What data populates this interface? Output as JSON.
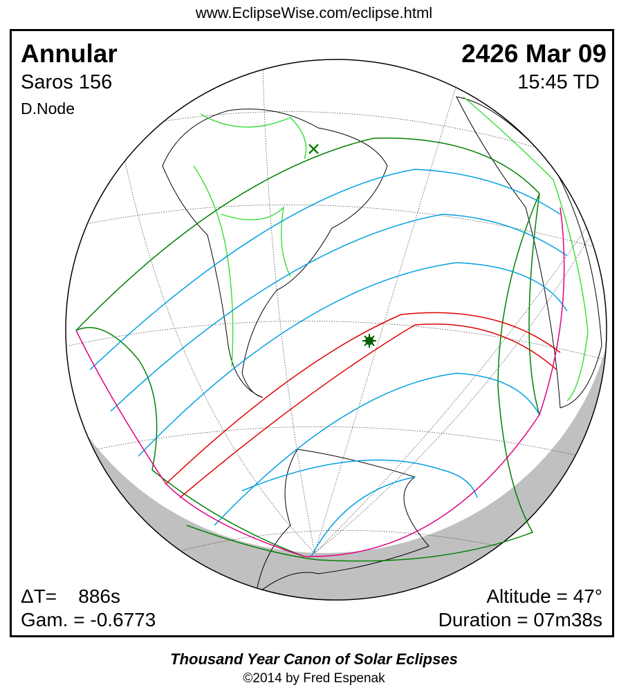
{
  "header": {
    "url": "www.EclipseWise.com/eclipse.html"
  },
  "eclipse": {
    "type": "Annular",
    "saros": "Saros 156",
    "node": "D.Node",
    "date": "2426 Mar 09",
    "time": "15:45 TD",
    "delta_t": "ΔT=    886s",
    "gamma": "Gam. = -0.6773",
    "altitude": "Altitude = 47°",
    "duration": "Duration = 07m38s"
  },
  "footer": {
    "title": "Thousand Year Canon of Solar Eclipses",
    "credit": "©2014 by Fred Espenak"
  },
  "colors": {
    "penumbra_limits": "#008000",
    "path_limits": "#e00000",
    "magnitude_lines": "#00a0e0",
    "rise_set": "#e0007f",
    "borders": "#33dd33",
    "night": "#c0c0c0"
  },
  "markers": {
    "greatest_eclipse": "star-icon",
    "subsolar_point": "x-icon"
  }
}
